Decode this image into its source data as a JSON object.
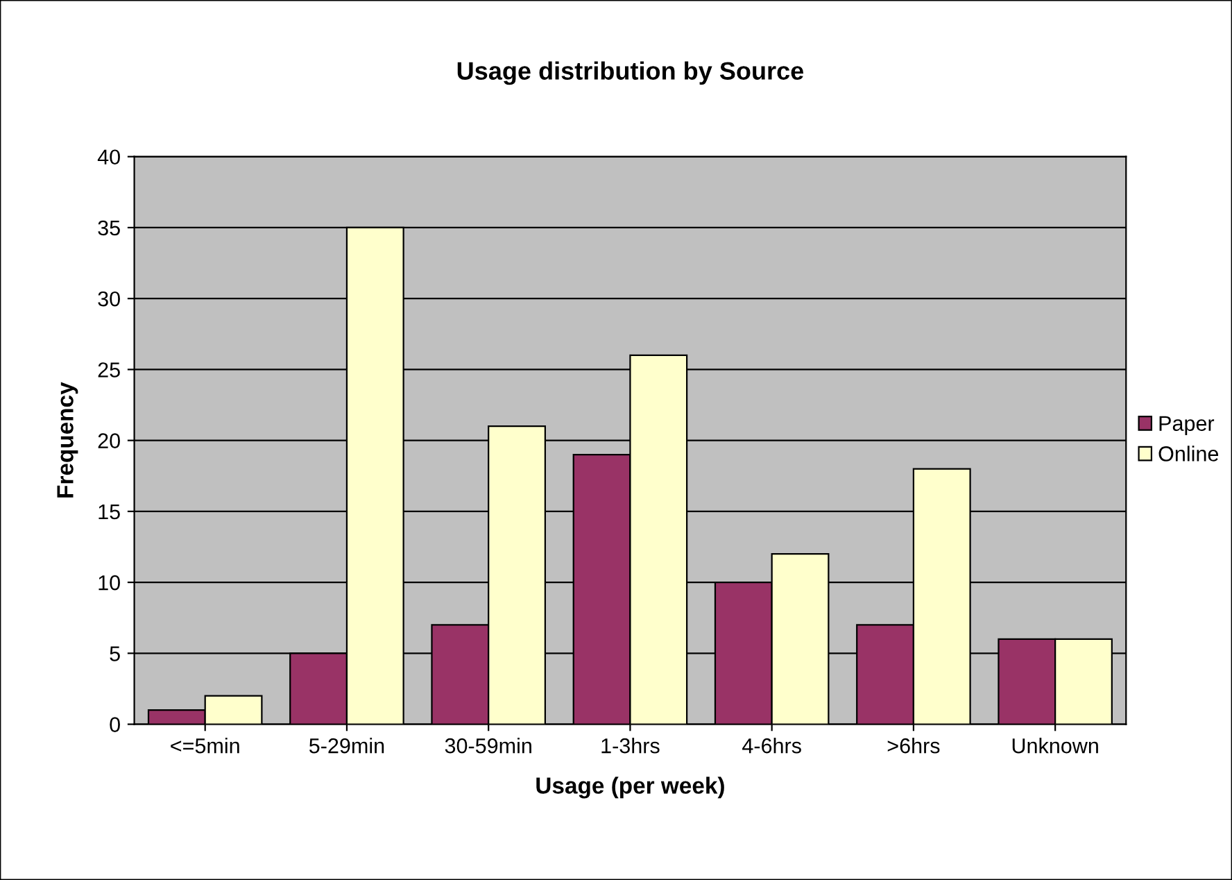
{
  "chart_data": {
    "type": "bar",
    "title": "Usage distribution by Source",
    "xlabel": "Usage (per week)",
    "ylabel": "Frequency",
    "categories": [
      "<=5min",
      "5-29min",
      "30-59min",
      "1-3hrs",
      "4-6hrs",
      ">6hrs",
      "Unknown"
    ],
    "series": [
      {
        "name": "Paper",
        "color": "#993366",
        "values": [
          1,
          5,
          7,
          19,
          10,
          7,
          6
        ]
      },
      {
        "name": "Online",
        "color": "#ffffcc",
        "values": [
          2,
          35,
          21,
          26,
          12,
          18,
          6
        ]
      }
    ],
    "ylim": [
      0,
      40
    ],
    "yticks": [
      0,
      5,
      10,
      15,
      20,
      25,
      30,
      35,
      40
    ],
    "grid": "y",
    "legend": "right"
  }
}
